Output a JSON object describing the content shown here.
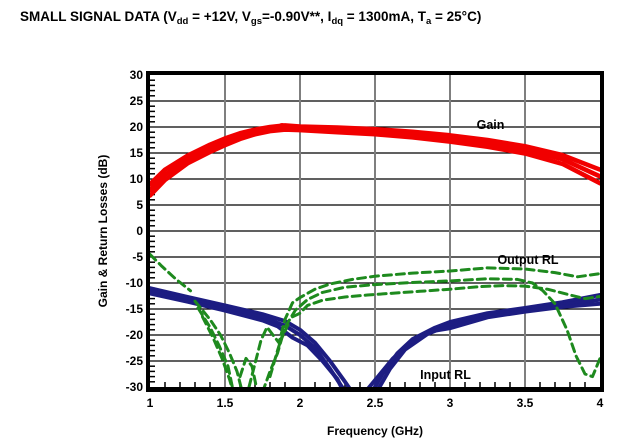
{
  "title": {
    "segments": [
      {
        "t": "SMALL SIGNAL DATA (V"
      },
      {
        "sub": "dd"
      },
      {
        "t": " = +12V, V"
      },
      {
        "sub": "gs"
      },
      {
        "t": "=-0.90V**, I"
      },
      {
        "sub": "dq"
      },
      {
        "t": " = 1300mA, T"
      },
      {
        "sub": "a"
      },
      {
        "t": " = 25°C)"
      }
    ]
  },
  "chart_data": {
    "type": "line",
    "title": "SMALL SIGNAL DATA (Vdd = +12V, Vgs=-0.90V**, Idq = 1300mA, Ta = 25°C)",
    "xlabel": "Frequency (GHz)",
    "ylabel": "Gain & Return Losses (dB)",
    "xlim": [
      1,
      4
    ],
    "ylim": [
      -30,
      30
    ],
    "grid": true,
    "x_ticks": [
      {
        "v": 1,
        "label": "1"
      },
      {
        "v": 1.5,
        "label": "1.5"
      },
      {
        "v": 2,
        "label": "2"
      },
      {
        "v": 2.5,
        "label": "2.5"
      },
      {
        "v": 3,
        "label": "3"
      },
      {
        "v": 3.5,
        "label": "3.5"
      },
      {
        "v": 4,
        "label": "4"
      }
    ],
    "y_ticks": [
      {
        "v": 30,
        "label": "30"
      },
      {
        "v": 25,
        "label": "25"
      },
      {
        "v": 20,
        "label": "20"
      },
      {
        "v": 15,
        "label": "15"
      },
      {
        "v": 10,
        "label": "10"
      },
      {
        "v": 5,
        "label": "5"
      },
      {
        "v": 0,
        "label": "0"
      },
      {
        "v": -5,
        "label": "-5"
      },
      {
        "v": -10,
        "label": "-10"
      },
      {
        "v": -15,
        "label": "-15"
      },
      {
        "v": -20,
        "label": "-20"
      },
      {
        "v": -25,
        "label": "-25"
      },
      {
        "v": -30,
        "label": "-30"
      }
    ],
    "x_minor_step": 0.1,
    "y_minor_step": 1,
    "colors": {
      "grid_h": "#000000",
      "grid_v": "#7f7f7f",
      "gain": "#f10000",
      "input_rl": "#1d1d82",
      "output_rl": "#1e8a1e"
    },
    "annotations": [
      {
        "name": "gain-label",
        "text": "Gain",
        "x": 3.27,
        "y": 20.4
      },
      {
        "name": "output-rl-label",
        "text": "Output RL",
        "x": 3.52,
        "y": -5.6
      },
      {
        "name": "input-rl-label",
        "text": "Input RL",
        "x": 2.97,
        "y": -27.7
      }
    ],
    "gain_dot": {
      "x": 1.88,
      "y": 20.0,
      "r": 4
    },
    "series": [
      {
        "name": "Input RL",
        "colorKey": "input_rl",
        "style": "solid",
        "width": 4,
        "traces": [
          [
            [
              [
                1,
                -11.0
              ],
              [
                1.25,
                -12.7
              ],
              [
                1.5,
                -14.3
              ],
              [
                1.75,
                -16.0
              ],
              [
                1.9,
                -17.3
              ],
              [
                2.0,
                -19.0
              ],
              [
                2.1,
                -21.5
              ],
              [
                2.2,
                -25.0
              ],
              [
                2.3,
                -29.0
              ],
              [
                2.36,
                -31.5
              ],
              [
                2.47,
                -31.5
              ],
              [
                2.55,
                -27.5
              ],
              [
                2.65,
                -23.5
              ],
              [
                2.75,
                -20.8
              ],
              [
                2.9,
                -18.6
              ],
              [
                3.0,
                -17.5
              ],
              [
                3.25,
                -15.8
              ],
              [
                3.5,
                -14.8
              ],
              [
                3.75,
                -13.7
              ],
              [
                4.0,
                -12.3
              ]
            ]
          ],
          [
            [
              [
                1,
                -11.5
              ],
              [
                1.25,
                -13.2
              ],
              [
                1.5,
                -14.8
              ],
              [
                1.75,
                -16.6
              ],
              [
                1.9,
                -18.2
              ],
              [
                2.0,
                -20.0
              ],
              [
                2.1,
                -22.5
              ],
              [
                2.2,
                -26.5
              ],
              [
                2.28,
                -30.0
              ],
              [
                2.33,
                -31.5
              ],
              [
                2.5,
                -31.5
              ],
              [
                2.6,
                -26.5
              ],
              [
                2.7,
                -22.8
              ],
              [
                2.85,
                -19.8
              ],
              [
                3.0,
                -18.0
              ],
              [
                3.25,
                -16.2
              ],
              [
                3.5,
                -15.2
              ],
              [
                3.75,
                -14.2
              ],
              [
                4.0,
                -13.2
              ]
            ]
          ],
          [
            [
              [
                1,
                -12.0
              ],
              [
                1.25,
                -13.6
              ],
              [
                1.5,
                -15.3
              ],
              [
                1.75,
                -17.2
              ],
              [
                1.85,
                -18.3
              ],
              [
                1.95,
                -20.5
              ],
              [
                2.05,
                -22.0
              ],
              [
                2.15,
                -25.0
              ],
              [
                2.25,
                -28.5
              ],
              [
                2.3,
                -31.5
              ],
              [
                2.42,
                -31.5
              ],
              [
                2.52,
                -28.0
              ],
              [
                2.62,
                -24.5
              ],
              [
                2.72,
                -21.8
              ],
              [
                2.87,
                -19.3
              ],
              [
                3.0,
                -18.7
              ],
              [
                3.25,
                -16.6
              ],
              [
                3.5,
                -15.5
              ],
              [
                3.75,
                -14.6
              ],
              [
                4.0,
                -14.0
              ]
            ]
          ]
        ]
      },
      {
        "name": "Output RL",
        "colorKey": "output_rl",
        "style": "dashed",
        "width": 3,
        "traces": [
          [
            [
              [
                1.0,
                -4.5
              ],
              [
                1.08,
                -6.8
              ],
              [
                1.17,
                -9.2
              ],
              [
                1.27,
                -11.5
              ]
            ],
            [
              [
                1.3,
                -13.5
              ],
              [
                1.4,
                -17.0
              ],
              [
                1.47,
                -20.0
              ],
              [
                1.53,
                -23.5
              ],
              [
                1.58,
                -27.0
              ],
              [
                1.62,
                -31.5
              ]
            ],
            [
              [
                1.66,
                -30.0
              ],
              [
                1.7,
                -25.5
              ],
              [
                1.74,
                -21.0
              ],
              [
                1.78,
                -18.5
              ],
              [
                1.82,
                -20.0
              ],
              [
                1.86,
                -21.5
              ],
              [
                1.9,
                -17.0
              ],
              [
                1.95,
                -13.8
              ],
              [
                2.0,
                -12.8
              ],
              [
                2.1,
                -11.2
              ],
              [
                2.2,
                -10.2
              ],
              [
                2.35,
                -9.3
              ],
              [
                2.5,
                -8.7
              ],
              [
                2.75,
                -8.1
              ],
              [
                3.0,
                -7.7
              ],
              [
                3.25,
                -7.1
              ],
              [
                3.5,
                -7.3
              ],
              [
                3.7,
                -8.0
              ],
              [
                3.85,
                -8.8
              ],
              [
                4.0,
                -8.2
              ]
            ]
          ],
          [
            [
              [
                1.32,
                -14.8
              ],
              [
                1.4,
                -18.5
              ],
              [
                1.46,
                -22.0
              ],
              [
                1.52,
                -26.0
              ],
              [
                1.56,
                -31.5
              ]
            ],
            [
              [
                1.6,
                -28.0
              ],
              [
                1.64,
                -24.5
              ],
              [
                1.68,
                -26.0
              ],
              [
                1.72,
                -31.5
              ]
            ],
            [
              [
                1.8,
                -28.0
              ],
              [
                1.85,
                -23.0
              ],
              [
                1.9,
                -18.5
              ],
              [
                1.97,
                -15.2
              ],
              [
                2.05,
                -13.2
              ],
              [
                2.15,
                -11.8
              ],
              [
                2.3,
                -10.8
              ],
              [
                2.5,
                -10.3
              ],
              [
                2.75,
                -9.9
              ],
              [
                3.0,
                -9.6
              ],
              [
                3.25,
                -9.2
              ],
              [
                3.45,
                -9.3
              ],
              [
                3.55,
                -10.0
              ],
              [
                3.62,
                -11.5
              ],
              [
                3.7,
                -14.0
              ],
              [
                3.78,
                -19.0
              ],
              [
                3.84,
                -24.0
              ],
              [
                3.9,
                -27.5
              ],
              [
                3.95,
                -28.0
              ],
              [
                4.0,
                -24.5
              ]
            ]
          ],
          [
            [
              [
                1.35,
                -16.5
              ],
              [
                1.42,
                -20.5
              ],
              [
                1.48,
                -24.5
              ],
              [
                1.53,
                -28.5
              ],
              [
                1.56,
                -31.5
              ]
            ],
            [
              [
                1.75,
                -31.0
              ],
              [
                1.8,
                -27.0
              ],
              [
                1.85,
                -23.5
              ],
              [
                1.88,
                -20.5
              ],
              [
                1.92,
                -18.0
              ]
            ],
            [
              [
                1.95,
                -16.5
              ],
              [
                2.0,
                -15.8
              ],
              [
                2.05,
                -14.3
              ],
              [
                2.15,
                -13.3
              ],
              [
                2.3,
                -12.7
              ],
              [
                2.45,
                -12.3
              ],
              [
                2.6,
                -12.0
              ],
              [
                2.8,
                -11.6
              ],
              [
                3.0,
                -11.2
              ],
              [
                3.2,
                -10.7
              ],
              [
                3.35,
                -10.5
              ],
              [
                3.5,
                -10.6
              ],
              [
                3.65,
                -11.2
              ],
              [
                3.8,
                -12.3
              ],
              [
                3.9,
                -13.0
              ],
              [
                4.0,
                -12.6
              ]
            ]
          ]
        ]
      },
      {
        "name": "Gain",
        "colorKey": "gain",
        "style": "solid",
        "width": 4.5,
        "traces": [
          [
            [
              [
                1,
                9.0
              ],
              [
                1.1,
                11.8
              ],
              [
                1.25,
                14.5
              ],
              [
                1.4,
                16.6
              ],
              [
                1.5,
                17.8
              ],
              [
                1.6,
                18.8
              ],
              [
                1.7,
                19.5
              ],
              [
                1.8,
                20.0
              ],
              [
                1.9,
                20.3
              ],
              [
                2.0,
                20.1
              ],
              [
                2.25,
                19.9
              ],
              [
                2.5,
                19.6
              ],
              [
                2.75,
                19.1
              ],
              [
                3.0,
                18.4
              ],
              [
                3.25,
                17.5
              ],
              [
                3.5,
                16.3
              ],
              [
                3.75,
                14.6
              ],
              [
                4.0,
                11.8
              ]
            ]
          ],
          [
            [
              [
                1,
                7.9
              ],
              [
                1.1,
                10.8
              ],
              [
                1.25,
                13.8
              ],
              [
                1.4,
                15.9
              ],
              [
                1.5,
                17.2
              ],
              [
                1.6,
                18.3
              ],
              [
                1.7,
                19.1
              ],
              [
                1.8,
                19.6
              ],
              [
                1.9,
                19.9
              ],
              [
                2.0,
                19.8
              ],
              [
                2.25,
                19.5
              ],
              [
                2.5,
                19.1
              ],
              [
                2.75,
                18.6
              ],
              [
                3.0,
                17.8
              ],
              [
                3.25,
                16.9
              ],
              [
                3.5,
                15.6
              ],
              [
                3.75,
                13.8
              ],
              [
                4.0,
                10.5
              ]
            ]
          ],
          [
            [
              [
                1,
                6.8
              ],
              [
                1.1,
                9.8
              ],
              [
                1.25,
                13.0
              ],
              [
                1.4,
                15.2
              ],
              [
                1.5,
                16.5
              ],
              [
                1.6,
                17.7
              ],
              [
                1.7,
                18.6
              ],
              [
                1.8,
                19.2
              ],
              [
                1.9,
                19.5
              ],
              [
                2.0,
                19.4
              ],
              [
                2.25,
                19.0
              ],
              [
                2.5,
                18.6
              ],
              [
                2.75,
                18.0
              ],
              [
                3.0,
                17.2
              ],
              [
                3.25,
                16.2
              ],
              [
                3.5,
                14.9
              ],
              [
                3.75,
                12.9
              ],
              [
                4.0,
                9.2
              ]
            ]
          ]
        ]
      }
    ]
  }
}
